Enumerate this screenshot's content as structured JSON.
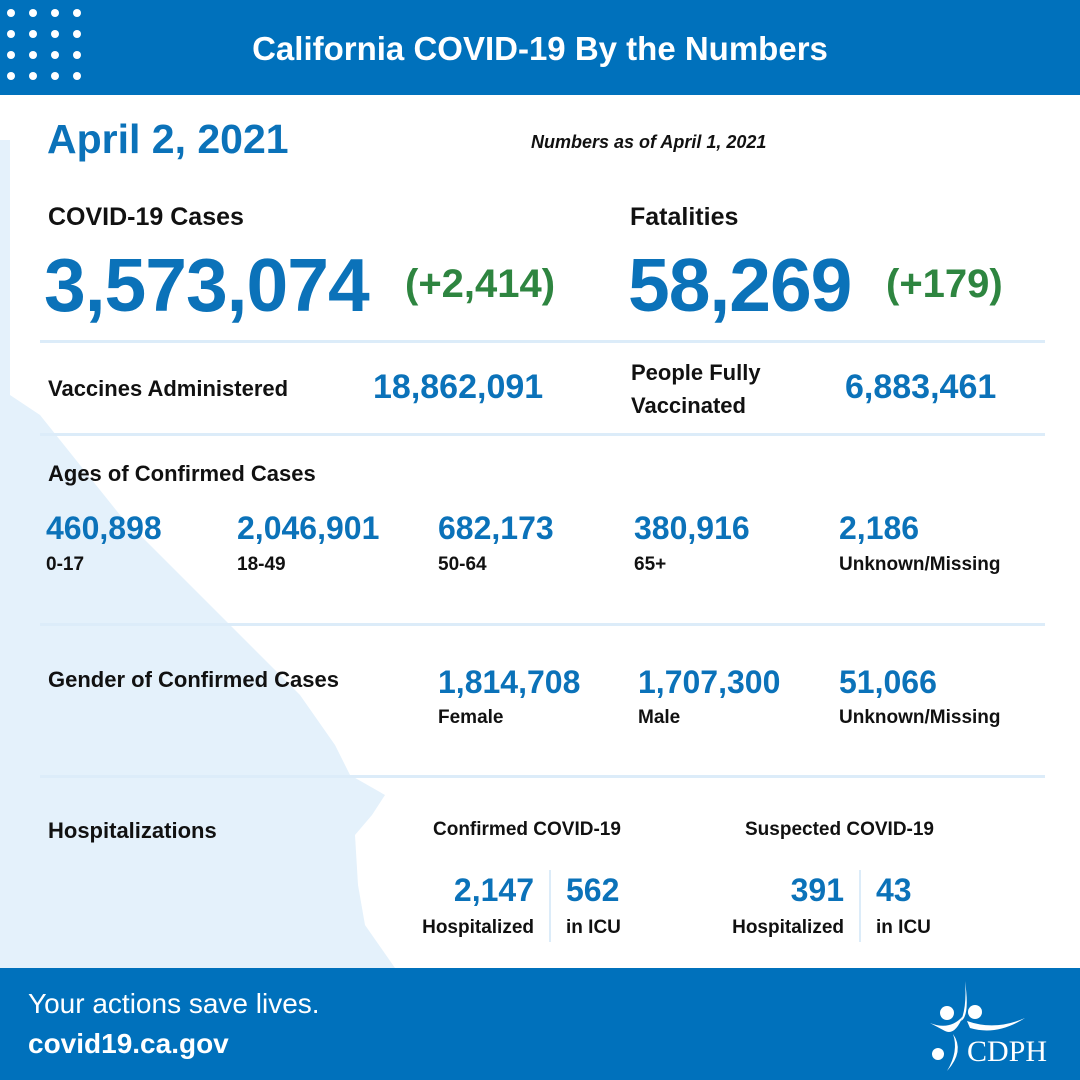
{
  "header": {
    "title": "California COVID-19 By the Numbers"
  },
  "date": "April 2, 2021",
  "as_of": "Numbers as of April 1, 2021",
  "cases": {
    "label": "COVID-19 Cases",
    "value": "3,573,074",
    "change": "(+2,414)"
  },
  "fatalities": {
    "label": "Fatalities",
    "value": "58,269",
    "change": "(+179)"
  },
  "vaccines": {
    "label": "Vaccines Administered",
    "value": "18,862,091"
  },
  "fully_vaccinated": {
    "label_line1": "People Fully",
    "label_line2": "Vaccinated",
    "value": "6,883,461"
  },
  "ages": {
    "title": "Ages of Confirmed Cases",
    "items": [
      {
        "value": "460,898",
        "label": "0-17"
      },
      {
        "value": "2,046,901",
        "label": "18-49"
      },
      {
        "value": "682,173",
        "label": "50-64"
      },
      {
        "value": "380,916",
        "label": "65+"
      },
      {
        "value": "2,186",
        "label": "Unknown/Missing"
      }
    ]
  },
  "gender": {
    "title": "Gender of Confirmed Cases",
    "items": [
      {
        "value": "1,814,708",
        "label": "Female"
      },
      {
        "value": "1,707,300",
        "label": "Male"
      },
      {
        "value": "51,066",
        "label": "Unknown/Missing"
      }
    ]
  },
  "hospitalizations": {
    "title": "Hospitalizations",
    "confirmed": {
      "title": "Confirmed COVID-19",
      "hospitalized": "2,147",
      "hospitalized_label": "Hospitalized",
      "icu": "562",
      "icu_label": "in ICU"
    },
    "suspected": {
      "title": "Suspected COVID-19",
      "hospitalized": "391",
      "hospitalized_label": "Hospitalized",
      "icu": "43",
      "icu_label": "in ICU"
    }
  },
  "footer": {
    "tagline": "Your actions save lives.",
    "website": "covid19.ca.gov",
    "logo_text": "CDPH"
  },
  "colors": {
    "brand_blue": "#0071bc",
    "number_blue": "#0b72b9",
    "change_green": "#2e8540",
    "map_tint": "#e4f1fb"
  }
}
